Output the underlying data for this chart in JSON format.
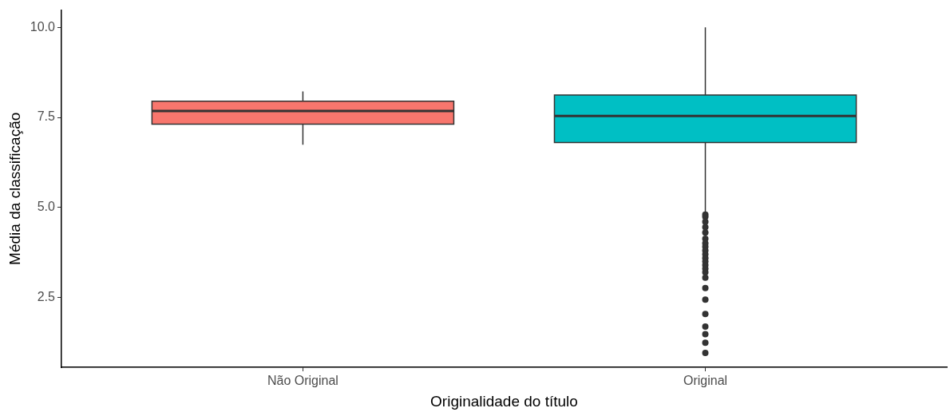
{
  "chart_data": {
    "type": "box",
    "xlabel": "Originalidade do título",
    "ylabel": "Média da classificação",
    "categories": [
      "Não Original",
      "Original"
    ],
    "colors": [
      "#f8766d",
      "#00bfc4"
    ],
    "boxes": [
      {
        "low": 6.74,
        "q1": 7.31,
        "median": 7.68,
        "q3": 7.95,
        "high": 8.22
      },
      {
        "low": 4.86,
        "q1": 6.8,
        "median": 7.54,
        "q3": 8.12,
        "high": 10.0,
        "outliers": [
          4.8,
          4.74,
          4.6,
          4.45,
          4.3,
          4.13,
          4.0,
          3.91,
          3.8,
          3.7,
          3.59,
          3.5,
          3.4,
          3.3,
          3.2,
          3.05,
          2.76,
          2.44,
          2.04,
          1.69,
          1.48,
          1.24,
          0.96
        ]
      }
    ],
    "ylim": [
      0.56,
      10.48
    ],
    "yticks": [
      {
        "value": 2.5,
        "label": "2.5"
      },
      {
        "value": 5,
        "label": "5.0"
      },
      {
        "value": 7.5,
        "label": "7.5"
      },
      {
        "value": 10,
        "label": "10.0"
      }
    ]
  }
}
